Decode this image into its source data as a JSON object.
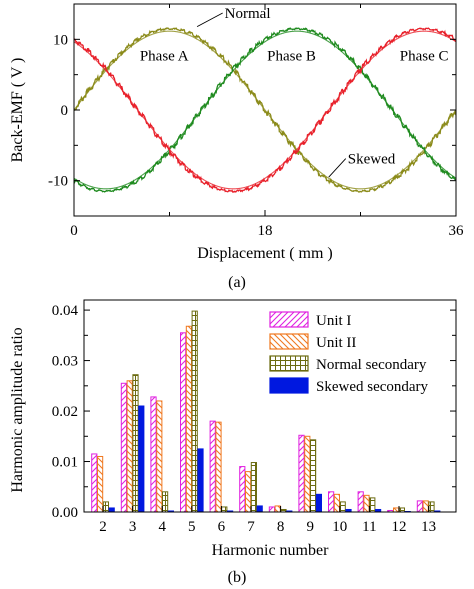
{
  "chart_data": [
    {
      "type": "line",
      "panel_label": "(a)",
      "xlabel": "Displacement ( mm )",
      "ylabel": "Back-EMF ( V )",
      "xlim": [
        0,
        36
      ],
      "ylim": [
        -15,
        15
      ],
      "xticks": [
        0,
        18,
        36
      ],
      "yticks": [
        -10,
        0,
        10
      ],
      "x_tick_labels": [
        "0",
        "18",
        "36"
      ],
      "y_tick_labels": [
        "-10",
        "0",
        "10"
      ],
      "amplitude": 11.5,
      "period_mm": 36,
      "series": [
        {
          "phase_offset_deg": 0,
          "color": "#8b8b1a"
        },
        {
          "phase_offset_deg": -120,
          "color": "#1e8a1e"
        },
        {
          "phase_offset_deg": 120,
          "color": "#e8202a"
        }
      ],
      "phase_labels": [
        {
          "text": "Phase A",
          "x": 8.5,
          "y": 7
        },
        {
          "text": "Phase B",
          "x": 20.5,
          "y": 7
        },
        {
          "text": "Phase C",
          "x": 33,
          "y": 7
        }
      ],
      "annotations": [
        {
          "text": "Normal",
          "x": 14.2,
          "y": 13.3,
          "arrow_to": [
            11.6,
            11.8
          ]
        },
        {
          "text": "Skewed",
          "x": 25.8,
          "y": -7.3,
          "arrow_to": [
            24.0,
            -9.5
          ]
        }
      ],
      "grid": false
    },
    {
      "type": "bar",
      "panel_label": "(b)",
      "xlabel": "Harmonic number",
      "ylabel": "Harmonic amplitude ratio",
      "categories": [
        "2",
        "3",
        "4",
        "5",
        "6",
        "7",
        "8",
        "9",
        "10",
        "11",
        "12",
        "13"
      ],
      "ylim": [
        0,
        0.042
      ],
      "yticks": [
        0,
        0.01,
        0.02,
        0.03,
        0.04
      ],
      "y_tick_labels": [
        "0.00",
        "0.01",
        "0.02",
        "0.03",
        "0.04"
      ],
      "legend_position": "top-right",
      "series": [
        {
          "name": "Unit I",
          "color": "#e020e0",
          "pattern": "hatch-ne",
          "values": [
            0.0115,
            0.0255,
            0.0228,
            0.0355,
            0.018,
            0.009,
            0.001,
            0.0152,
            0.004,
            0.004,
            0.0003,
            0.0022
          ]
        },
        {
          "name": "Unit II",
          "color": "#f07820",
          "pattern": "hatch-nw",
          "values": [
            0.011,
            0.026,
            0.022,
            0.0368,
            0.0178,
            0.008,
            0.0012,
            0.015,
            0.0035,
            0.0033,
            0.0008,
            0.0022
          ]
        },
        {
          "name": "Normal secondary",
          "color": "#6b6b10",
          "pattern": "grid",
          "values": [
            0.002,
            0.0272,
            0.004,
            0.0398,
            0.001,
            0.0098,
            0.0005,
            0.0143,
            0.002,
            0.0028,
            0.0008,
            0.002
          ]
        },
        {
          "name": "Skewed secondary",
          "color": "#0018e0",
          "pattern": "solid",
          "values": [
            0.0008,
            0.021,
            0.0002,
            0.0125,
            0.0002,
            0.0012,
            0.0002,
            0.0035,
            0.0005,
            0.0005,
            0.0001,
            0.0002
          ]
        }
      ]
    }
  ]
}
